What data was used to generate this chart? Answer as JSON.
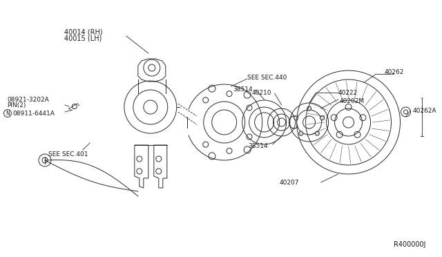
{
  "bg_color": "#ffffff",
  "line_color": "#2a2a2a",
  "text_color": "#1a1a1a",
  "fig_width": 6.4,
  "fig_height": 3.72,
  "dpi": 100,
  "labels": {
    "part1a": "40014 (RH)",
    "part1b": "40015 (LH)",
    "part3": "08921-3202A",
    "part4": "PIN(2)",
    "part5a": "N",
    "part5b": "08911-6441A",
    "part6": "SEE SEC.401",
    "part7": "SEE SEC.440",
    "part8a": "38514",
    "part8b": "40210",
    "part10": "38514",
    "part11": "40222",
    "part12": "40202M",
    "part13": "40262",
    "part14": "40262A",
    "part15": "40207",
    "ref": "R400000J"
  }
}
